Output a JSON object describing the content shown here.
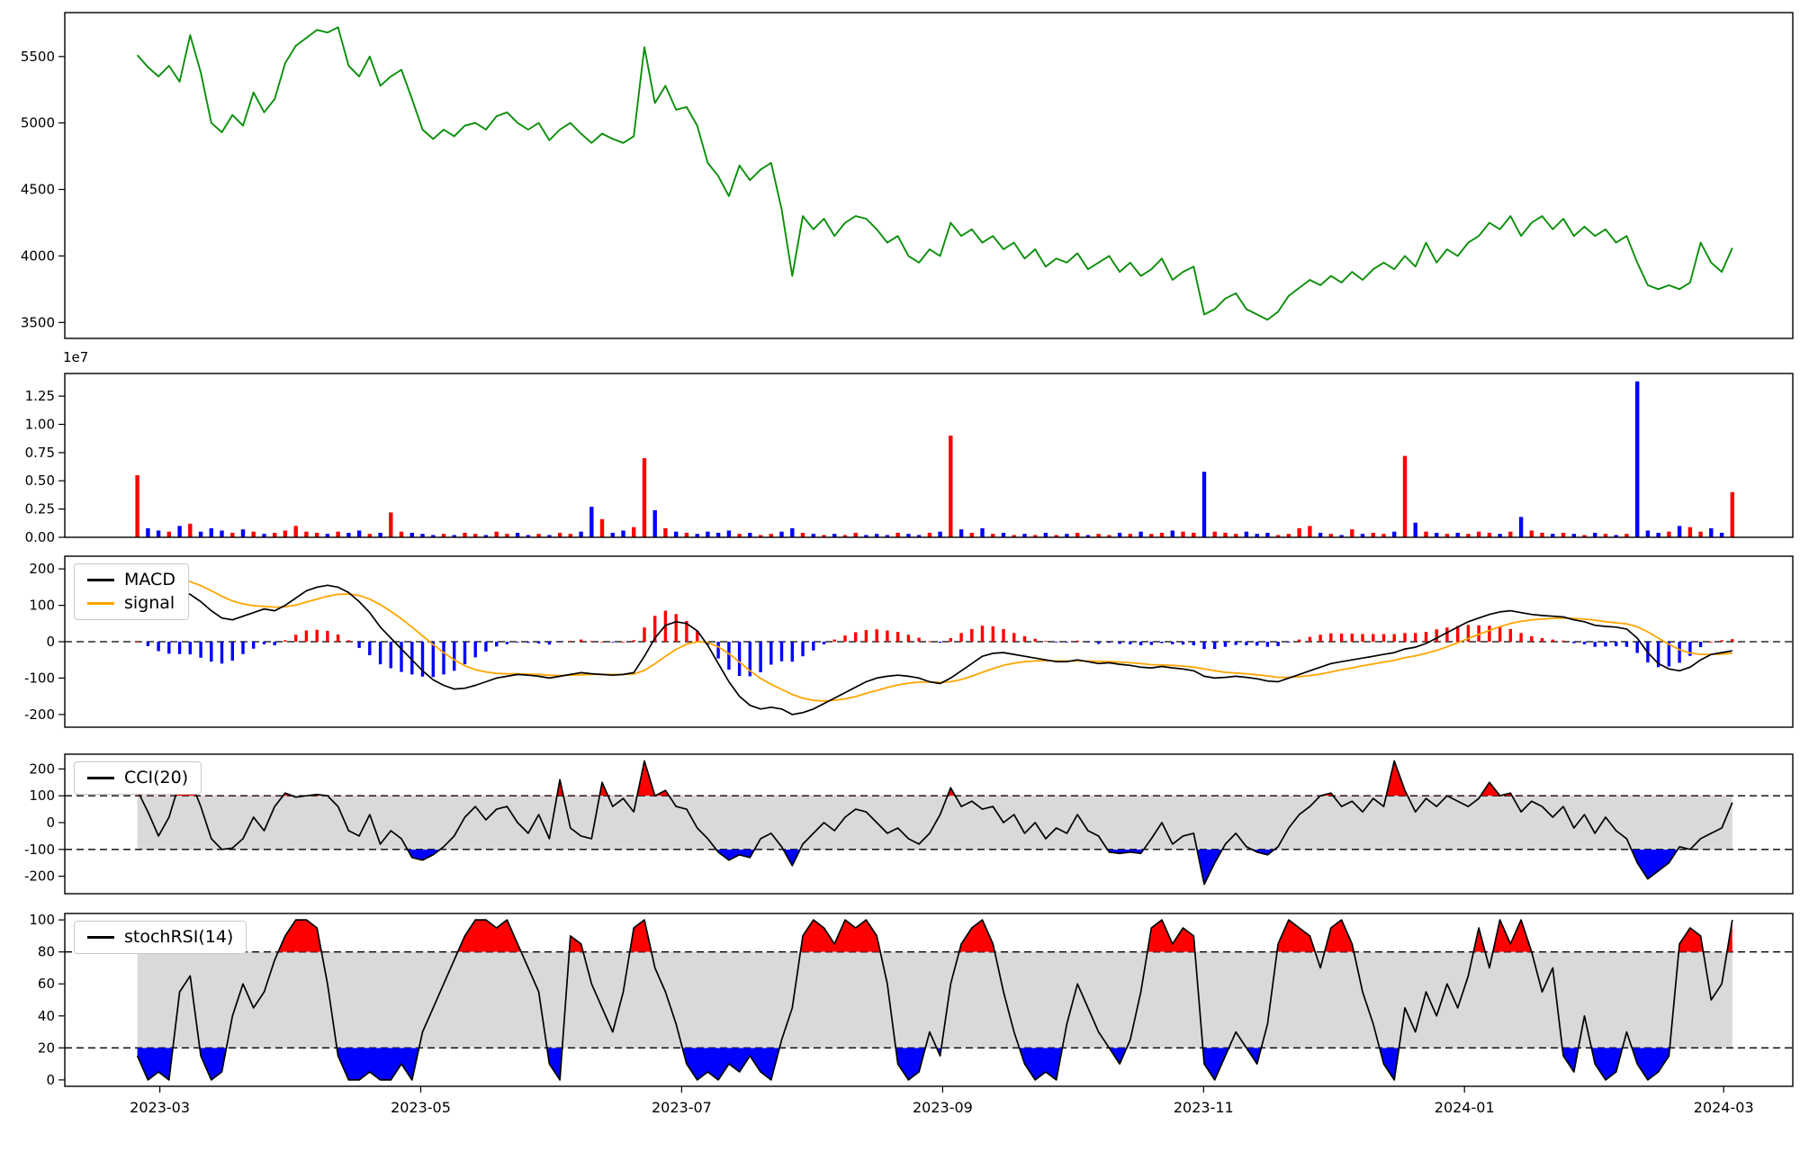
{
  "figure": {
    "background": "#ffffff"
  },
  "x_axis": {
    "tick_labels": [
      "2023-03",
      "2023-05",
      "2023-07",
      "2023-09",
      "2023-11",
      "2024-01",
      "2024-03"
    ],
    "tick_positions": [
      0.055,
      0.206,
      0.357,
      0.508,
      0.659,
      0.81,
      0.96
    ]
  },
  "chart_data": [
    {
      "name": "price",
      "type": "line",
      "color": "#0a8f0a",
      "ylim": [
        3380,
        5830
      ],
      "ytick_values": [
        3500,
        4000,
        4500,
        5000,
        5500
      ],
      "ytick_labels": [
        "3500",
        "4000",
        "4500",
        "5000",
        "5500"
      ],
      "values": [
        5510,
        5420,
        5350,
        5430,
        5310,
        5660,
        5380,
        5000,
        4930,
        5060,
        4980,
        5230,
        5080,
        5180,
        5450,
        5580,
        5640,
        5700,
        5680,
        5720,
        5430,
        5350,
        5500,
        5280,
        5350,
        5400,
        5180,
        4950,
        4880,
        4950,
        4900,
        4980,
        5000,
        4950,
        5050,
        5080,
        5000,
        4950,
        5000,
        4870,
        4950,
        5000,
        4920,
        4850,
        4920,
        4880,
        4850,
        4900,
        5570,
        5150,
        5280,
        5100,
        5120,
        4980,
        4700,
        4600,
        4450,
        4680,
        4570,
        4650,
        4700,
        4350,
        3850,
        4300,
        4200,
        4280,
        4150,
        4250,
        4300,
        4280,
        4200,
        4100,
        4150,
        4000,
        3950,
        4050,
        4000,
        4250,
        4150,
        4200,
        4100,
        4150,
        4050,
        4100,
        3980,
        4050,
        3920,
        3980,
        3950,
        4020,
        3900,
        3950,
        4000,
        3880,
        3950,
        3850,
        3900,
        3980,
        3820,
        3880,
        3920,
        3560,
        3600,
        3680,
        3720,
        3600,
        3560,
        3520,
        3580,
        3700,
        3760,
        3820,
        3780,
        3850,
        3800,
        3880,
        3820,
        3900,
        3950,
        3900,
        4000,
        3920,
        4100,
        3950,
        4050,
        4000,
        4100,
        4150,
        4250,
        4200,
        4300,
        4150,
        4250,
        4300,
        4200,
        4280,
        4150,
        4220,
        4150,
        4200,
        4100,
        4150,
        3950,
        3780,
        3750,
        3780,
        3750,
        3800,
        4100,
        3950,
        3880,
        4060
      ]
    },
    {
      "name": "volume",
      "type": "bar",
      "scale_label": "1e7",
      "unit": "1e7",
      "up_color": "#ff0000",
      "down_color": "#0000ff",
      "color_rule": "red when price closes up vs previous point, blue when down",
      "ylim": [
        0,
        1.45
      ],
      "ytick_values": [
        0,
        0.25,
        0.5,
        0.75,
        1.0,
        1.25
      ],
      "ytick_labels": [
        "0.00",
        "0.25",
        "0.50",
        "0.75",
        "1.00",
        "1.25"
      ],
      "values": [
        0.55,
        0.08,
        0.06,
        0.05,
        0.1,
        0.12,
        0.05,
        0.08,
        0.06,
        0.04,
        0.07,
        0.05,
        0.03,
        0.04,
        0.06,
        0.1,
        0.05,
        0.04,
        0.03,
        0.05,
        0.04,
        0.06,
        0.03,
        0.04,
        0.22,
        0.05,
        0.04,
        0.03,
        0.02,
        0.03,
        0.02,
        0.04,
        0.03,
        0.02,
        0.05,
        0.03,
        0.04,
        0.02,
        0.03,
        0.02,
        0.04,
        0.03,
        0.05,
        0.27,
        0.16,
        0.04,
        0.06,
        0.09,
        0.7,
        0.24,
        0.08,
        0.05,
        0.04,
        0.03,
        0.05,
        0.04,
        0.06,
        0.03,
        0.04,
        0.02,
        0.03,
        0.05,
        0.08,
        0.04,
        0.03,
        0.02,
        0.03,
        0.02,
        0.04,
        0.02,
        0.03,
        0.02,
        0.04,
        0.03,
        0.02,
        0.04,
        0.05,
        0.9,
        0.07,
        0.04,
        0.08,
        0.03,
        0.04,
        0.02,
        0.03,
        0.02,
        0.04,
        0.02,
        0.03,
        0.04,
        0.02,
        0.03,
        0.02,
        0.04,
        0.03,
        0.05,
        0.03,
        0.04,
        0.06,
        0.05,
        0.04,
        0.58,
        0.05,
        0.04,
        0.03,
        0.05,
        0.03,
        0.04,
        0.02,
        0.03,
        0.08,
        0.1,
        0.04,
        0.03,
        0.02,
        0.07,
        0.03,
        0.04,
        0.03,
        0.05,
        0.72,
        0.13,
        0.05,
        0.04,
        0.03,
        0.04,
        0.03,
        0.05,
        0.04,
        0.03,
        0.05,
        0.18,
        0.06,
        0.04,
        0.03,
        0.04,
        0.03,
        0.02,
        0.04,
        0.03,
        0.02,
        0.03,
        1.38,
        0.06,
        0.04,
        0.05,
        0.1,
        0.09,
        0.05,
        0.08,
        0.04,
        0.4
      ]
    },
    {
      "name": "macd",
      "type": "macd",
      "legend": [
        "MACD",
        "signal"
      ],
      "macd_color": "#000000",
      "signal_color": "#ffa500",
      "hist_pos_color": "#ff0000",
      "hist_neg_color": "#0000ff",
      "zero_line": 0,
      "ylim": [
        -235,
        235
      ],
      "ytick_values": [
        -200,
        -100,
        0,
        100,
        200
      ],
      "ytick_labels": [
        "-200",
        "-100",
        "0",
        "100",
        "200"
      ],
      "macd": [
        200,
        185,
        165,
        150,
        140,
        130,
        110,
        85,
        65,
        60,
        70,
        80,
        90,
        85,
        100,
        120,
        140,
        150,
        155,
        150,
        135,
        110,
        80,
        40,
        10,
        -20,
        -50,
        -80,
        -105,
        -120,
        -130,
        -128,
        -120,
        -110,
        -100,
        -95,
        -90,
        -92,
        -95,
        -100,
        -95,
        -90,
        -85,
        -88,
        -90,
        -92,
        -90,
        -85,
        -40,
        10,
        45,
        55,
        50,
        30,
        -10,
        -60,
        -110,
        -150,
        -175,
        -185,
        -180,
        -185,
        -200,
        -195,
        -185,
        -170,
        -155,
        -140,
        -125,
        -110,
        -100,
        -95,
        -92,
        -95,
        -100,
        -110,
        -115,
        -100,
        -80,
        -60,
        -40,
        -32,
        -30,
        -35,
        -40,
        -45,
        -50,
        -55,
        -55,
        -50,
        -55,
        -60,
        -58,
        -62,
        -65,
        -70,
        -72,
        -68,
        -72,
        -75,
        -80,
        -95,
        -100,
        -98,
        -95,
        -98,
        -102,
        -108,
        -110,
        -100,
        -90,
        -80,
        -70,
        -60,
        -55,
        -50,
        -45,
        -40,
        -35,
        -30,
        -20,
        -15,
        -5,
        10,
        25,
        40,
        55,
        65,
        75,
        82,
        85,
        80,
        75,
        72,
        70,
        68,
        60,
        55,
        45,
        42,
        40,
        35,
        10,
        -30,
        -60,
        -75,
        -80,
        -70,
        -50,
        -35,
        -30,
        -25
      ],
      "signal": [
        200,
        197,
        191,
        183,
        174,
        165,
        154,
        140,
        125,
        112,
        104,
        99,
        97,
        95,
        96,
        101,
        109,
        117,
        125,
        130,
        131,
        127,
        117,
        102,
        83,
        63,
        40,
        16,
        -8,
        -30,
        -50,
        -66,
        -77,
        -83,
        -87,
        -88,
        -88,
        -89,
        -90,
        -92,
        -93,
        -92,
        -91,
        -90,
        -90,
        -90,
        -90,
        -89,
        -79,
        -61,
        -40,
        -21,
        -7,
        0,
        -2,
        -14,
        -33,
        -56,
        -80,
        -101,
        -117,
        -131,
        -145,
        -155,
        -161,
        -163,
        -161,
        -157,
        -151,
        -142,
        -134,
        -126,
        -119,
        -114,
        -111,
        -111,
        -112,
        -110,
        -104,
        -95,
        -84,
        -74,
        -65,
        -59,
        -55,
        -53,
        -52,
        -53,
        -53,
        -53,
        -53,
        -54,
        -55,
        -56,
        -58,
        -60,
        -63,
        -64,
        -65,
        -67,
        -70,
        -75,
        -80,
        -84,
        -86,
        -88,
        -91,
        -94,
        -98,
        -98,
        -96,
        -93,
        -89,
        -83,
        -77,
        -72,
        -66,
        -61,
        -56,
        -51,
        -44,
        -39,
        -32,
        -24,
        -14,
        -3,
        9,
        20,
        31,
        41,
        50,
        56,
        60,
        62,
        64,
        65,
        64,
        62,
        59,
        55,
        52,
        49,
        41,
        27,
        10,
        -7,
        -22,
        -31,
        -35,
        -35,
        -34,
        -32
      ],
      "histogram_rule": "histogram = macd - signal (red positive, blue negative)"
    },
    {
      "name": "cci",
      "type": "band_line",
      "legend": [
        "CCI(20)"
      ],
      "line_color": "#000000",
      "band": [
        -100,
        100
      ],
      "band_color": "#d9d9d9",
      "above_fill": "#ff0000",
      "below_fill": "#0000ff",
      "ylim": [
        -265,
        255
      ],
      "ytick_values": [
        -200,
        -100,
        0,
        100,
        200
      ],
      "ytick_labels": [
        "-200",
        "-100",
        "0",
        "100",
        "200"
      ],
      "values": [
        120,
        40,
        -50,
        20,
        150,
        160,
        60,
        -60,
        -100,
        -95,
        -60,
        20,
        -30,
        60,
        110,
        95,
        100,
        105,
        100,
        60,
        -30,
        -50,
        30,
        -80,
        -30,
        -60,
        -130,
        -140,
        -120,
        -90,
        -50,
        20,
        60,
        10,
        50,
        60,
        0,
        -40,
        30,
        -60,
        160,
        -20,
        -50,
        -60,
        150,
        60,
        90,
        40,
        230,
        100,
        120,
        60,
        50,
        -20,
        -60,
        -110,
        -140,
        -120,
        -130,
        -60,
        -40,
        -90,
        -160,
        -80,
        -40,
        0,
        -30,
        20,
        50,
        40,
        0,
        -40,
        -20,
        -60,
        -80,
        -40,
        30,
        130,
        60,
        80,
        50,
        60,
        0,
        30,
        -40,
        0,
        -60,
        -20,
        -40,
        30,
        -30,
        -50,
        -110,
        -115,
        -110,
        -115,
        -60,
        0,
        -80,
        -50,
        -40,
        -230,
        -150,
        -80,
        -40,
        -90,
        -110,
        -120,
        -90,
        -20,
        30,
        60,
        100,
        110,
        60,
        80,
        40,
        90,
        60,
        230,
        120,
        40,
        90,
        60,
        100,
        80,
        60,
        90,
        150,
        100,
        110,
        40,
        80,
        60,
        20,
        60,
        -20,
        30,
        -40,
        20,
        -30,
        -60,
        -150,
        -210,
        -180,
        -150,
        -90,
        -100,
        -60,
        -40,
        -20,
        75
      ]
    },
    {
      "name": "stochrsi",
      "type": "band_line",
      "legend": [
        "stochRSI(14)"
      ],
      "line_color": "#000000",
      "band": [
        20,
        80
      ],
      "band_color": "#d9d9d9",
      "above_fill": "#ff0000",
      "below_fill": "#0000ff",
      "ylim": [
        -4,
        104
      ],
      "ytick_values": [
        0,
        20,
        40,
        60,
        80,
        100
      ],
      "ytick_labels": [
        "0",
        "20",
        "40",
        "60",
        "80",
        "100"
      ],
      "values": [
        15,
        0,
        5,
        0,
        55,
        65,
        15,
        0,
        5,
        40,
        60,
        45,
        55,
        75,
        90,
        100,
        100,
        95,
        60,
        15,
        0,
        0,
        5,
        0,
        0,
        10,
        0,
        30,
        45,
        60,
        75,
        90,
        100,
        100,
        95,
        100,
        85,
        70,
        55,
        10,
        0,
        90,
        85,
        60,
        45,
        30,
        55,
        95,
        100,
        70,
        55,
        35,
        10,
        0,
        5,
        0,
        10,
        5,
        15,
        5,
        0,
        25,
        45,
        90,
        100,
        95,
        85,
        100,
        95,
        100,
        90,
        60,
        10,
        0,
        5,
        30,
        15,
        60,
        85,
        95,
        100,
        85,
        55,
        30,
        10,
        0,
        5,
        0,
        35,
        60,
        45,
        30,
        20,
        10,
        25,
        55,
        95,
        100,
        85,
        95,
        90,
        10,
        0,
        15,
        30,
        20,
        10,
        35,
        85,
        100,
        95,
        90,
        70,
        95,
        100,
        85,
        55,
        35,
        10,
        0,
        45,
        30,
        55,
        40,
        60,
        45,
        65,
        95,
        70,
        100,
        85,
        100,
        80,
        55,
        70,
        15,
        5,
        40,
        10,
        0,
        5,
        30,
        10,
        0,
        5,
        15,
        85,
        95,
        90,
        50,
        60,
        100
      ]
    }
  ]
}
